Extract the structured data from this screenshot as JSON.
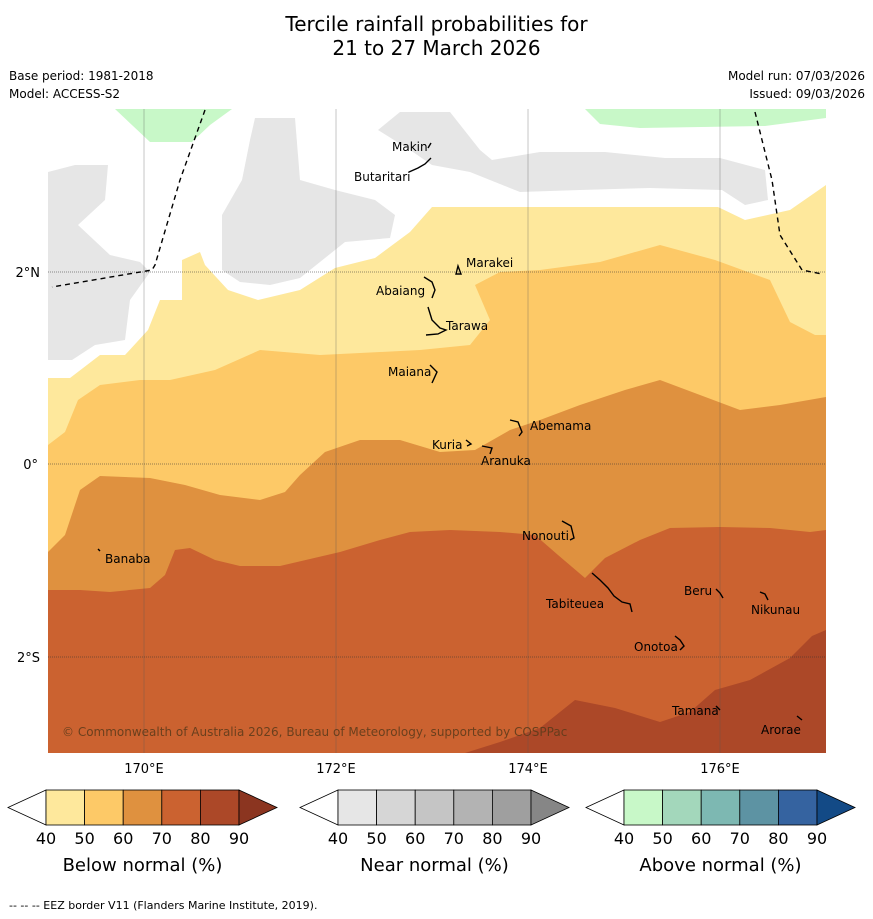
{
  "title_line1": "Tercile rainfall probabilities for",
  "title_line2": "21 to 27 March 2026",
  "meta": {
    "base_period": "Base period: 1981-2018",
    "model": "Model: ACCESS-S2",
    "model_run": "Model run: 07/03/2026",
    "issued": "Issued: 09/03/2026"
  },
  "axes": {
    "lat_labels": [
      "2°N",
      "0°",
      "2°S"
    ],
    "lon_labels": [
      "170°E",
      "172°E",
      "174°E",
      "176°E"
    ]
  },
  "islands": [
    {
      "name": "Makin"
    },
    {
      "name": "Butaritari"
    },
    {
      "name": "Marakei"
    },
    {
      "name": "Abaiang"
    },
    {
      "name": "Tarawa"
    },
    {
      "name": "Maiana"
    },
    {
      "name": "Abemama"
    },
    {
      "name": "Kuria"
    },
    {
      "name": "Aranuka"
    },
    {
      "name": "Nonouti"
    },
    {
      "name": "Banaba"
    },
    {
      "name": "Beru"
    },
    {
      "name": "Nikunau"
    },
    {
      "name": "Tabiteuea"
    },
    {
      "name": "Onotoa"
    },
    {
      "name": "Tamana"
    },
    {
      "name": "Arorae"
    }
  ],
  "copyright": "© Commonwealth of Australia 2026, Bureau of Meteorology, supported by COSPPac",
  "colorbars": [
    {
      "id": "below",
      "title": "Below normal (%)",
      "ticks": [
        "40",
        "50",
        "60",
        "70",
        "80",
        "90"
      ],
      "colors": [
        "#fee89c",
        "#fdc967",
        "#df913f",
        "#cb6230",
        "#ac4828",
        "#8b3520"
      ]
    },
    {
      "id": "near",
      "title": "Near normal (%)",
      "ticks": [
        "40",
        "50",
        "60",
        "70",
        "80",
        "90"
      ],
      "colors": [
        "#e6e6e6",
        "#d6d6d6",
        "#c5c5c5",
        "#b3b3b3",
        "#9f9f9f",
        "#868686"
      ]
    },
    {
      "id": "above",
      "title": "Above normal (%)",
      "ticks": [
        "40",
        "50",
        "60",
        "70",
        "80",
        "90"
      ],
      "colors": [
        "#c8f8c8",
        "#a3d7bb",
        "#7db8b2",
        "#5d93a3",
        "#3563a0",
        "#134a86"
      ]
    }
  ],
  "footer": "--  --  -- EEZ border V11 (Flanders Marine Institute, 2019)."
}
